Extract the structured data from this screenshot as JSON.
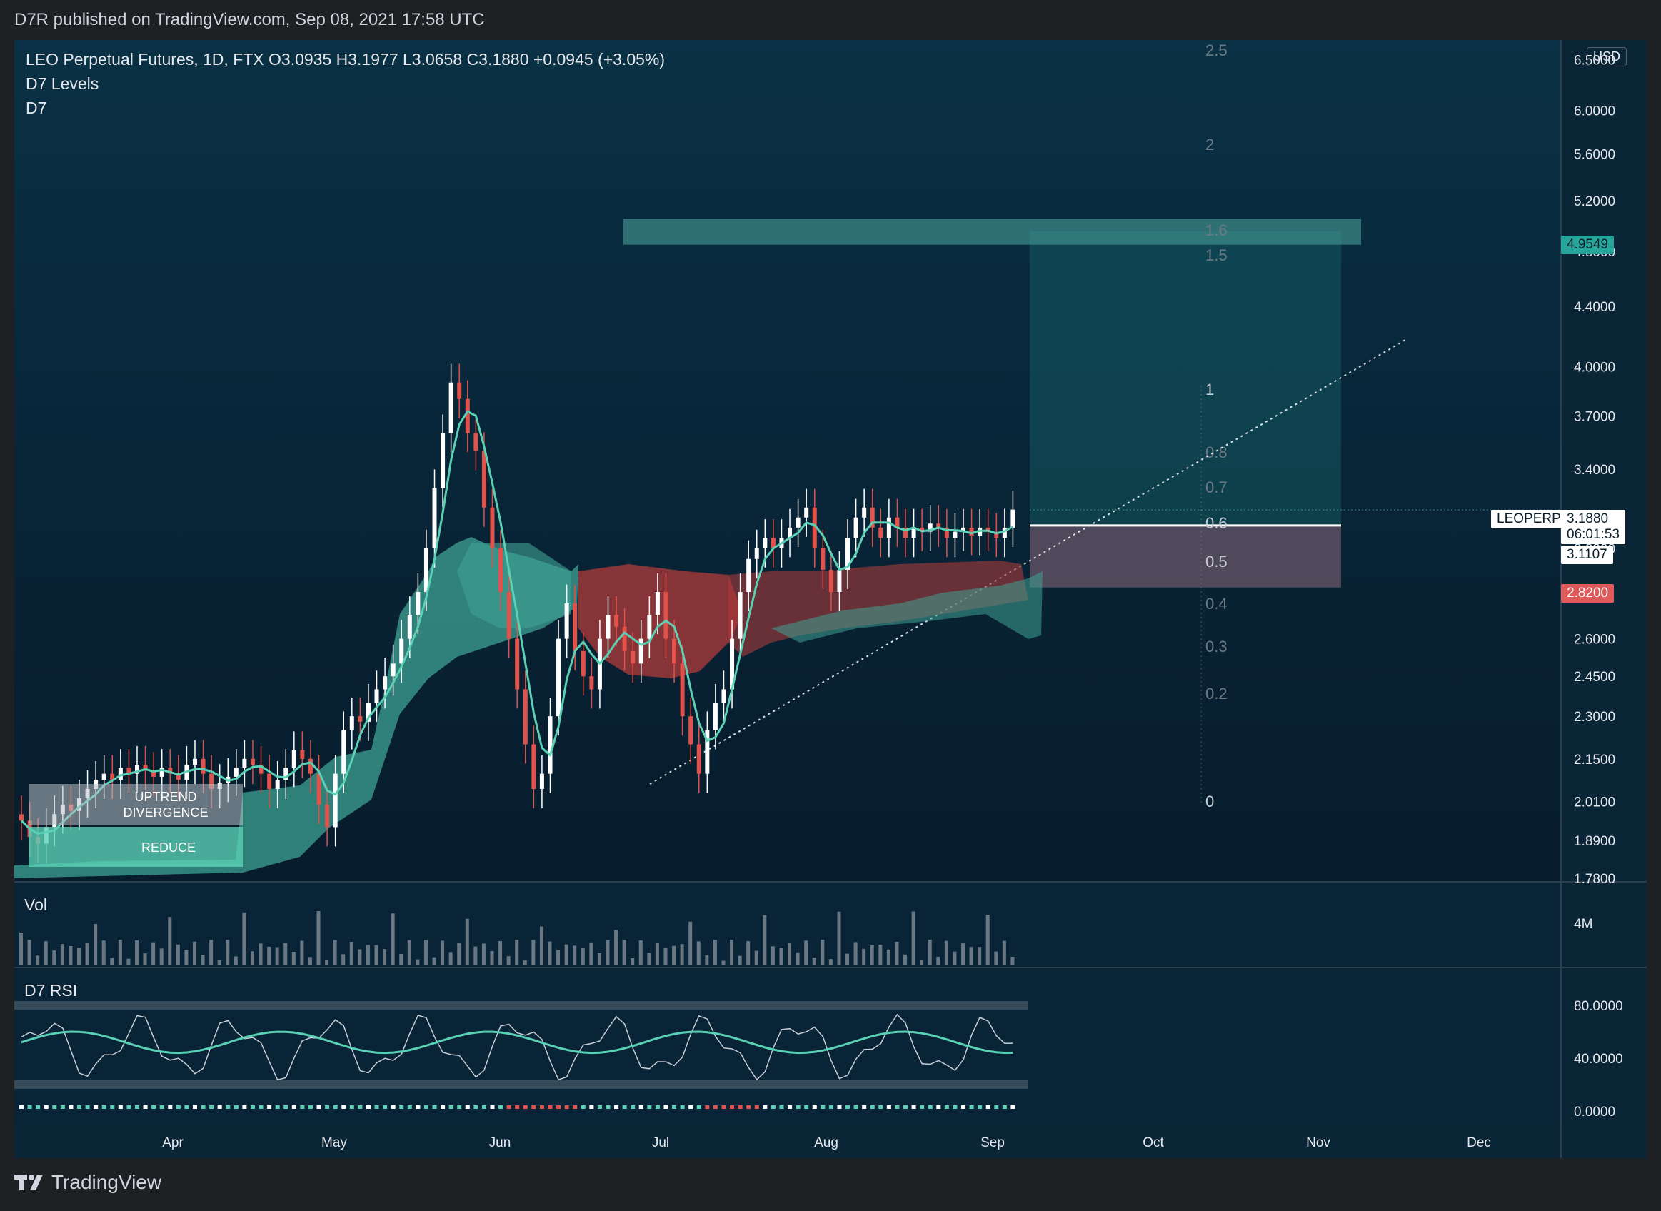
{
  "header": {
    "published_text": "D7R published on TradingView.com, Sep 08, 2021 17:58 UTC"
  },
  "legend": {
    "title": "LEO Perpetual Futures, 1D, FTX  O3.0935  H3.1977  L3.0658  C3.1880  +0.0945 (+3.05%)",
    "indicator_1": "D7 Levels",
    "indicator_2": "D7"
  },
  "price_axis": {
    "currency": "USD",
    "labels": [
      "6.5000",
      "6.0000",
      "5.6000",
      "5.2000",
      "4.8000",
      "4.4000",
      "4.0000",
      "3.7000",
      "3.4000",
      "3.0000",
      "2.6000",
      "2.4500",
      "2.3000",
      "2.1500",
      "2.0100",
      "1.8900",
      "1.7800"
    ],
    "target_tag": "4.9549",
    "symbol_tag": "LEOPERP",
    "last_price": "3.1880",
    "countdown": "06:01:53",
    "entry_tag": "3.1107",
    "stop_tag": "2.8200"
  },
  "fib_levels": [
    "2.5",
    "2",
    "1.6",
    "1.5",
    "1",
    "0.8",
    "0.7",
    "0.6",
    "0.5",
    "0.4",
    "0.3",
    "0.2",
    "0"
  ],
  "box_labels": {
    "divergence": "UPTREND\nDIVERGENCE",
    "divergence_line1": "UPTREND",
    "divergence_line2": "DIVERGENCE",
    "reduce": "REDUCE"
  },
  "volume_pane": {
    "label": "Vol",
    "axis_label": "4M"
  },
  "rsi_pane": {
    "label": "D7 RSI",
    "axis_labels": [
      "80.0000",
      "40.0000",
      "0.0000"
    ]
  },
  "time_axis": {
    "labels": [
      "Apr",
      "May",
      "Jun",
      "Jul",
      "Aug",
      "Sep",
      "Oct",
      "Nov",
      "Dec"
    ]
  },
  "footer": {
    "logo_text": "TradingView"
  },
  "colors": {
    "bg": "#0a2a3a",
    "up": "#5ad1b5",
    "down": "#e0524a",
    "cloud_up": "#3fa294",
    "cloud_down": "#a83a3a",
    "target": "#26a69a",
    "stop": "#e05a5a"
  },
  "chart_data": {
    "type": "candlestick",
    "x_start": "2021-03-09",
    "x_end": "2021-09-08",
    "ylim": [
      1.78,
      6.6
    ],
    "y_scale": "log",
    "close_series": [
      1.95,
      1.9,
      1.88,
      1.93,
      1.97,
      2.0,
      1.98,
      2.02,
      2.05,
      2.08,
      2.1,
      2.08,
      2.12,
      2.1,
      2.13,
      2.11,
      2.09,
      2.12,
      2.1,
      2.08,
      2.13,
      2.15,
      2.1,
      2.05,
      2.07,
      2.09,
      2.12,
      2.15,
      2.13,
      2.1,
      2.05,
      2.08,
      2.12,
      2.18,
      2.15,
      2.1,
      2.0,
      1.93,
      2.1,
      2.25,
      2.3,
      2.28,
      2.35,
      2.4,
      2.45,
      2.5,
      2.6,
      2.7,
      2.8,
      3.0,
      3.3,
      3.6,
      3.9,
      3.8,
      3.6,
      3.5,
      3.2,
      3.0,
      2.8,
      2.6,
      2.4,
      2.2,
      2.05,
      2.1,
      2.3,
      2.6,
      2.75,
      2.55,
      2.45,
      2.4,
      2.6,
      2.7,
      2.65,
      2.55,
      2.5,
      2.6,
      2.7,
      2.8,
      2.6,
      2.5,
      2.3,
      2.2,
      2.1,
      2.25,
      2.35,
      2.4,
      2.6,
      2.8,
      2.95,
      3.0,
      3.05,
      3.0,
      3.05,
      3.1,
      3.15,
      3.2,
      3.0,
      2.9,
      2.8,
      2.9,
      3.05,
      3.15,
      3.2,
      3.1,
      3.05,
      3.15,
      3.1,
      3.05,
      3.1,
      3.08,
      3.12,
      3.1,
      3.05,
      3.08,
      3.1,
      3.06,
      3.1,
      3.08,
      3.05,
      3.1,
      3.19
    ]
  }
}
